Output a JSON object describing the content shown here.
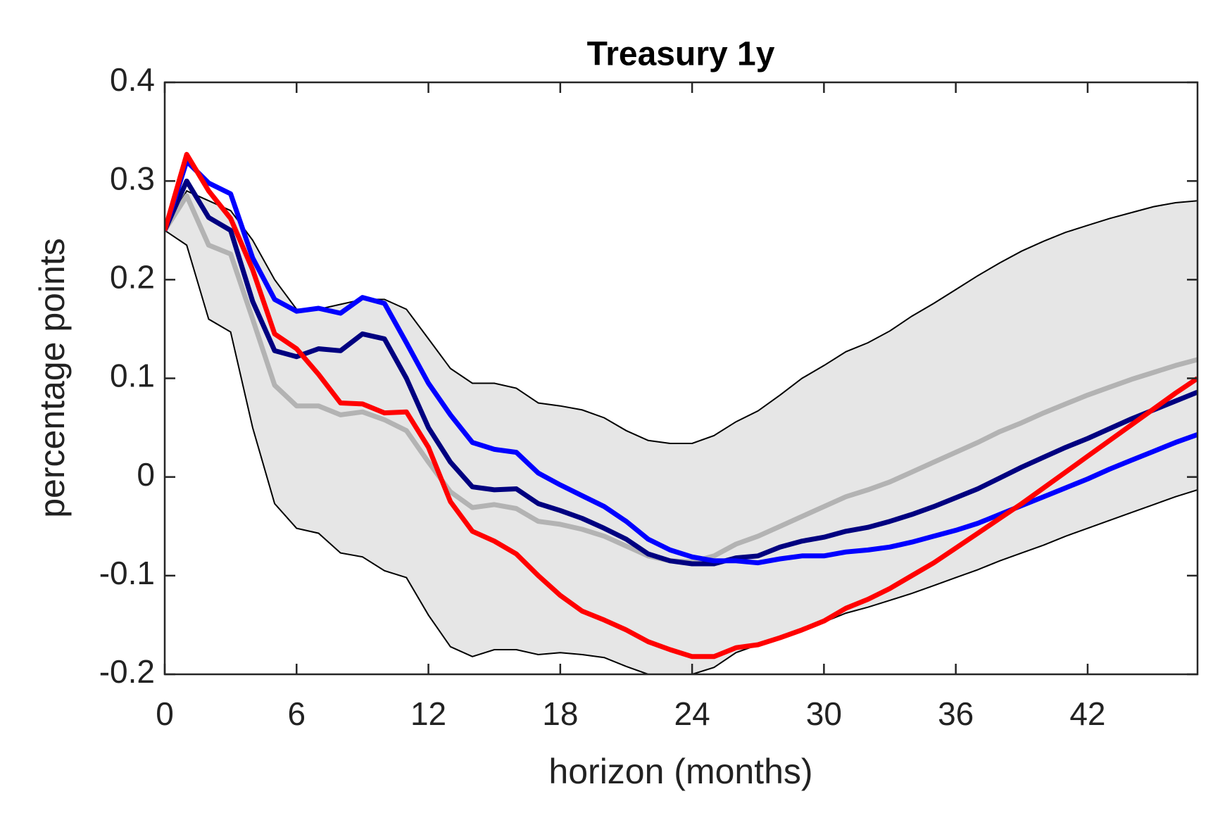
{
  "chart_data": {
    "type": "line",
    "title": "Treasury 1y",
    "x_label": "horizon (months)",
    "y_label": "percentage points",
    "x": [
      0,
      1,
      2,
      3,
      4,
      5,
      6,
      7,
      8,
      9,
      10,
      11,
      12,
      13,
      14,
      15,
      16,
      17,
      18,
      19,
      20,
      21,
      22,
      23,
      24,
      25,
      26,
      27,
      28,
      29,
      30,
      31,
      32,
      33,
      34,
      35,
      36,
      37,
      38,
      39,
      40,
      41,
      42,
      43,
      44,
      45,
      46,
      47
    ],
    "xlim": [
      0,
      47
    ],
    "xticks": [
      0,
      6,
      12,
      18,
      24,
      30,
      36,
      42
    ],
    "ylim": [
      -0.2,
      0.4
    ],
    "yticks": [
      -0.2,
      -0.1,
      0,
      0.1,
      0.2,
      0.3,
      0.4
    ],
    "band": {
      "color": "#e6e6e6",
      "edge_color": "#000000",
      "upper": [
        0.25,
        0.29,
        0.28,
        0.27,
        0.24,
        0.2,
        0.17,
        0.17,
        0.175,
        0.18,
        0.18,
        0.17,
        0.14,
        0.11,
        0.095,
        0.095,
        0.09,
        0.075,
        0.072,
        0.068,
        0.06,
        0.047,
        0.037,
        0.034,
        0.034,
        0.042,
        0.056,
        0.067,
        0.083,
        0.1,
        0.113,
        0.127,
        0.136,
        0.148,
        0.163,
        0.176,
        0.19,
        0.204,
        0.217,
        0.229,
        0.239,
        0.248,
        0.255,
        0.262,
        0.268,
        0.274,
        0.278,
        0.28
      ],
      "lower": [
        0.25,
        0.235,
        0.16,
        0.147,
        0.05,
        -0.027,
        -0.052,
        -0.057,
        -0.077,
        -0.081,
        -0.095,
        -0.102,
        -0.14,
        -0.172,
        -0.182,
        -0.175,
        -0.175,
        -0.18,
        -0.178,
        -0.18,
        -0.183,
        -0.192,
        -0.2,
        -0.2,
        -0.2,
        -0.193,
        -0.178,
        -0.17,
        -0.163,
        -0.155,
        -0.147,
        -0.138,
        -0.132,
        -0.125,
        -0.118,
        -0.11,
        -0.102,
        -0.094,
        -0.085,
        -0.077,
        -0.069,
        -0.06,
        -0.052,
        -0.044,
        -0.036,
        -0.028,
        -0.02,
        -0.013
      ]
    },
    "series": [
      {
        "color": "#b3b3b3",
        "values": [
          0.25,
          0.285,
          0.235,
          0.226,
          0.16,
          0.093,
          0.072,
          0.072,
          0.063,
          0.066,
          0.058,
          0.047,
          0.015,
          -0.015,
          -0.031,
          -0.028,
          -0.032,
          -0.045,
          -0.048,
          -0.053,
          -0.06,
          -0.07,
          -0.08,
          -0.085,
          -0.086,
          -0.08,
          -0.068,
          -0.06,
          -0.05,
          -0.04,
          -0.03,
          -0.02,
          -0.013,
          -0.005,
          0.005,
          0.015,
          0.025,
          0.035,
          0.046,
          0.055,
          0.065,
          0.074,
          0.083,
          0.091,
          0.099,
          0.106,
          0.113,
          0.119
        ]
      },
      {
        "color": "#000080",
        "values": [
          0.25,
          0.3,
          0.263,
          0.25,
          0.178,
          0.128,
          0.122,
          0.13,
          0.128,
          0.145,
          0.14,
          0.1,
          0.05,
          0.015,
          -0.01,
          -0.013,
          -0.012,
          -0.027,
          -0.034,
          -0.042,
          -0.052,
          -0.063,
          -0.078,
          -0.085,
          -0.088,
          -0.088,
          -0.082,
          -0.08,
          -0.071,
          -0.065,
          -0.061,
          -0.055,
          -0.051,
          -0.045,
          -0.038,
          -0.03,
          -0.021,
          -0.012,
          -0.001,
          0.01,
          0.02,
          0.03,
          0.039,
          0.049,
          0.059,
          0.068,
          0.077,
          0.086
        ]
      },
      {
        "color": "#0000ff",
        "values": [
          0.25,
          0.32,
          0.298,
          0.287,
          0.222,
          0.18,
          0.168,
          0.171,
          0.166,
          0.182,
          0.176,
          0.136,
          0.095,
          0.063,
          0.035,
          0.028,
          0.025,
          0.004,
          -0.008,
          -0.019,
          -0.03,
          -0.045,
          -0.063,
          -0.074,
          -0.081,
          -0.085,
          -0.085,
          -0.087,
          -0.083,
          -0.08,
          -0.08,
          -0.076,
          -0.074,
          -0.071,
          -0.066,
          -0.06,
          -0.054,
          -0.047,
          -0.038,
          -0.029,
          -0.02,
          -0.011,
          -0.002,
          0.008,
          0.017,
          0.026,
          0.035,
          0.043
        ]
      },
      {
        "color": "#ff0000",
        "values": [
          0.25,
          0.327,
          0.29,
          0.262,
          0.21,
          0.145,
          0.13,
          0.104,
          0.075,
          0.074,
          0.065,
          0.066,
          0.03,
          -0.025,
          -0.055,
          -0.065,
          -0.078,
          -0.1,
          -0.12,
          -0.136,
          -0.145,
          -0.155,
          -0.167,
          -0.175,
          -0.182,
          -0.182,
          -0.173,
          -0.17,
          -0.163,
          -0.155,
          -0.146,
          -0.133,
          -0.124,
          -0.113,
          -0.1,
          -0.087,
          -0.072,
          -0.057,
          -0.042,
          -0.027,
          -0.011,
          0.005,
          0.021,
          0.037,
          0.053,
          0.069,
          0.085,
          0.1
        ]
      }
    ]
  }
}
